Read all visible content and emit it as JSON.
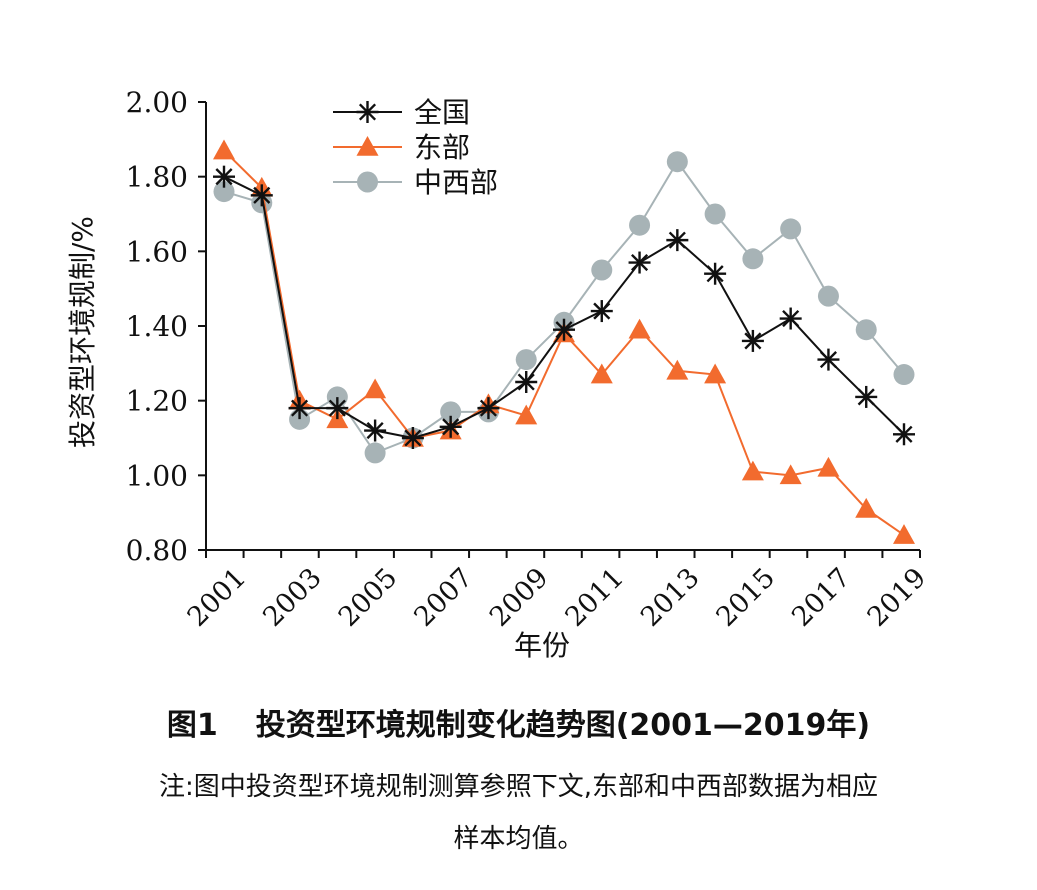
{
  "chart_data": {
    "type": "line",
    "title": "",
    "xlabel": "年份",
    "ylabel": "投资型环境规制/%",
    "ylim": [
      0.8,
      2.0
    ],
    "yticks": [
      "0.80",
      "1.00",
      "1.20",
      "1.40",
      "1.60",
      "1.80",
      "2.00"
    ],
    "ytick_values": [
      0.8,
      1.0,
      1.2,
      1.4,
      1.6,
      1.8,
      2.0
    ],
    "x": [
      2001,
      2002,
      2003,
      2004,
      2005,
      2006,
      2007,
      2008,
      2009,
      2010,
      2011,
      2012,
      2013,
      2014,
      2015,
      2016,
      2017,
      2018,
      2019
    ],
    "xticks": [
      "2001",
      "2003",
      "2005",
      "2007",
      "2009",
      "2011",
      "2013",
      "2015",
      "2017",
      "2019"
    ],
    "legend_position": "top-left",
    "grid": false,
    "series": [
      {
        "name": "全国",
        "marker": "asterisk",
        "color": "#111111",
        "values": [
          1.8,
          1.75,
          1.18,
          1.18,
          1.12,
          1.1,
          1.13,
          1.18,
          1.25,
          1.39,
          1.44,
          1.57,
          1.63,
          1.54,
          1.36,
          1.42,
          1.31,
          1.21,
          1.11
        ]
      },
      {
        "name": "东部",
        "marker": "triangle",
        "color": "#f26b2e",
        "values": [
          1.87,
          1.77,
          1.2,
          1.15,
          1.23,
          1.1,
          1.12,
          1.19,
          1.16,
          1.38,
          1.27,
          1.39,
          1.28,
          1.27,
          1.01,
          1.0,
          1.02,
          0.91,
          0.84
        ]
      },
      {
        "name": "中西部",
        "marker": "circle",
        "color": "#a7b3b6",
        "values": [
          1.76,
          1.73,
          1.15,
          1.21,
          1.06,
          1.1,
          1.17,
          1.17,
          1.31,
          1.41,
          1.55,
          1.67,
          1.84,
          1.7,
          1.58,
          1.66,
          1.48,
          1.39,
          1.27
        ]
      }
    ]
  },
  "caption": {
    "figure_number": "图1",
    "figure_title": "投资型环境规制变化趋势图(2001—2019年)",
    "note_line1": "注:图中投资型环境规制测算参照下文,东部和中西部数据为相应",
    "note_line2": "样本均值。"
  }
}
